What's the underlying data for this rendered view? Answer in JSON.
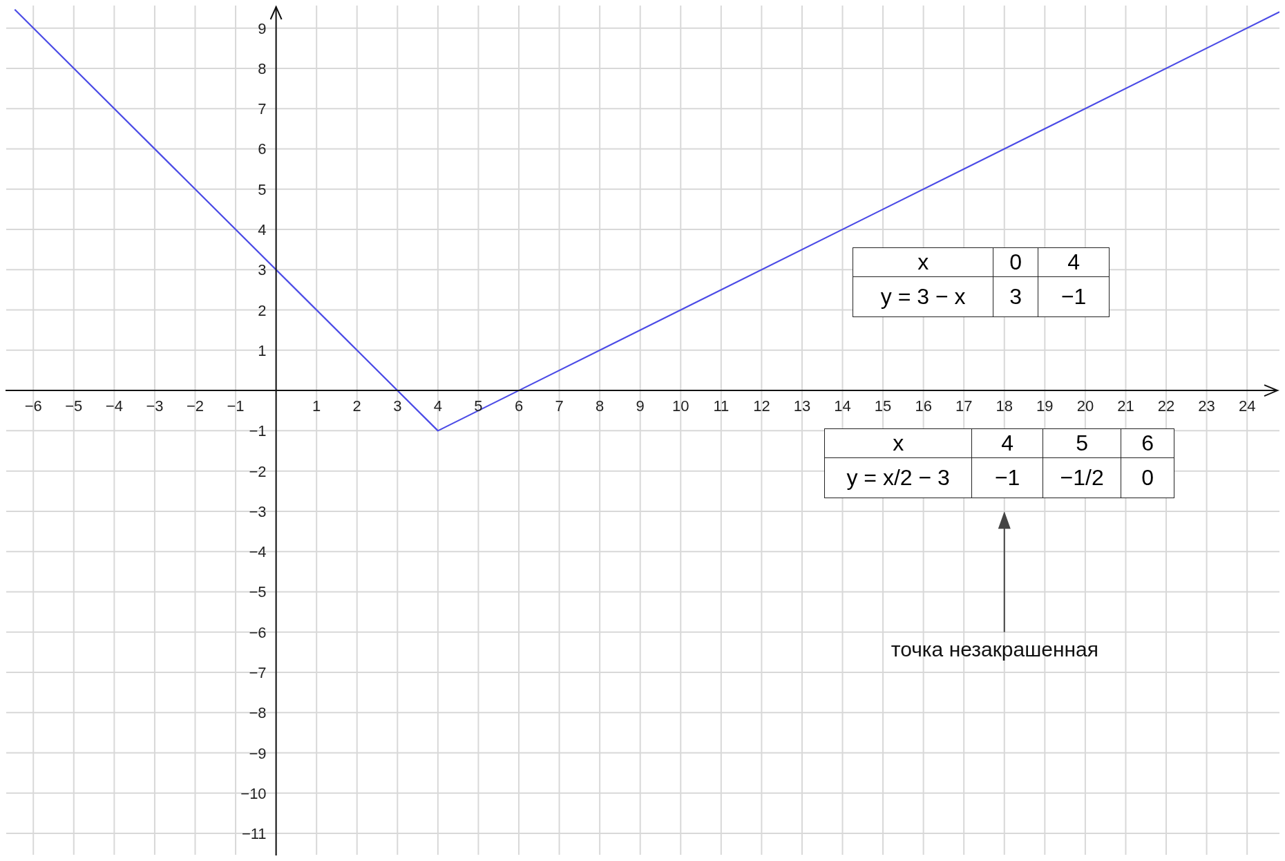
{
  "chart_data": {
    "type": "line",
    "x": [
      -6.46,
      4,
      24.8
    ],
    "series": [
      {
        "color": "#4b4be6",
        "values": [
          9.46,
          -1,
          9.4
        ]
      }
    ],
    "xlim": [
      -6.67,
      24.8
    ],
    "ylim": [
      -11.53,
      9.56
    ],
    "xticks": [
      -6,
      -5,
      -4,
      -3,
      -2,
      -1,
      {
        "value": 0,
        "label": null
      },
      1,
      2,
      3,
      4,
      5,
      6,
      7,
      8,
      9,
      10,
      11,
      12,
      13,
      14,
      15,
      16,
      17,
      18,
      19,
      20,
      21,
      22,
      23,
      24
    ],
    "yticks": [
      -11,
      -10,
      -9,
      -8,
      -7,
      -6,
      -5,
      -4,
      -3,
      -2,
      -1,
      {
        "value": 0,
        "label": null
      },
      1,
      2,
      3,
      4,
      5,
      6,
      7,
      8,
      9
    ],
    "grid": true,
    "marker": "none",
    "line_style": "solid",
    "annotations": [
      "x",
      "0",
      "4",
      "y = 3 − x",
      "3",
      "−1",
      "x",
      "4",
      "5",
      "6",
      "y = x/2 − 3",
      "−1",
      "−1/2",
      "0",
      "точка незакрашенная"
    ]
  }
}
